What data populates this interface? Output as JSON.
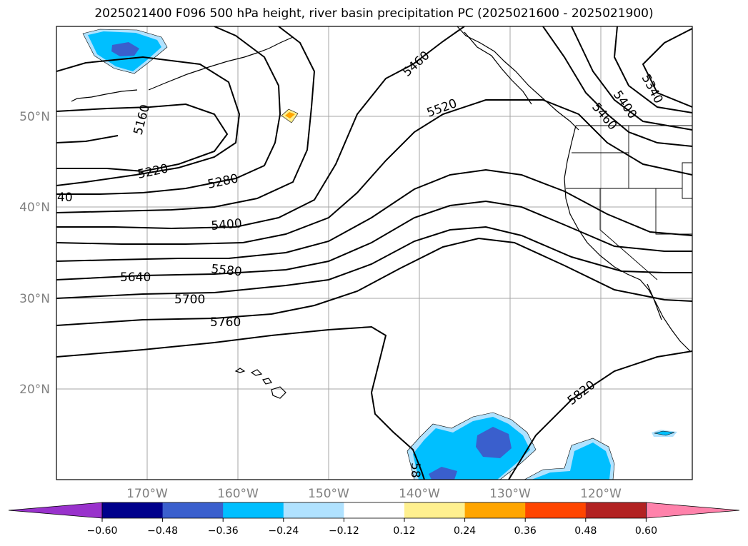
{
  "title": "2025021400 F096 500 hPa height, river basin precipitation PC (2025021600 - 2025021900)",
  "map": {
    "lon_labels": [
      "170°W",
      "160°W",
      "150°W",
      "140°W",
      "130°W",
      "120°W"
    ],
    "lat_labels": [
      "50°N",
      "40°N",
      "30°N",
      "20°N"
    ],
    "contour_labels": [
      "5160",
      "5220",
      "5280",
      "5340",
      "5400",
      "5460",
      "5520",
      "5580",
      "5640",
      "5700",
      "5760",
      "5820"
    ],
    "edge_labels": [
      "40",
      "58"
    ],
    "gridlines": true
  },
  "colorbar": {
    "ticks": [
      "−0.60",
      "−0.48",
      "−0.36",
      "−0.24",
      "−0.12",
      "0.12",
      "0.24",
      "0.36",
      "0.48",
      "0.60"
    ],
    "colors": [
      "#9932cc",
      "#00008b",
      "#3a5fcd",
      "#00bfff",
      "#b0e2ff",
      "#ffffff",
      "#fff08f",
      "#ffa500",
      "#ff4500",
      "#b22222",
      "#ff82ab"
    ]
  }
}
